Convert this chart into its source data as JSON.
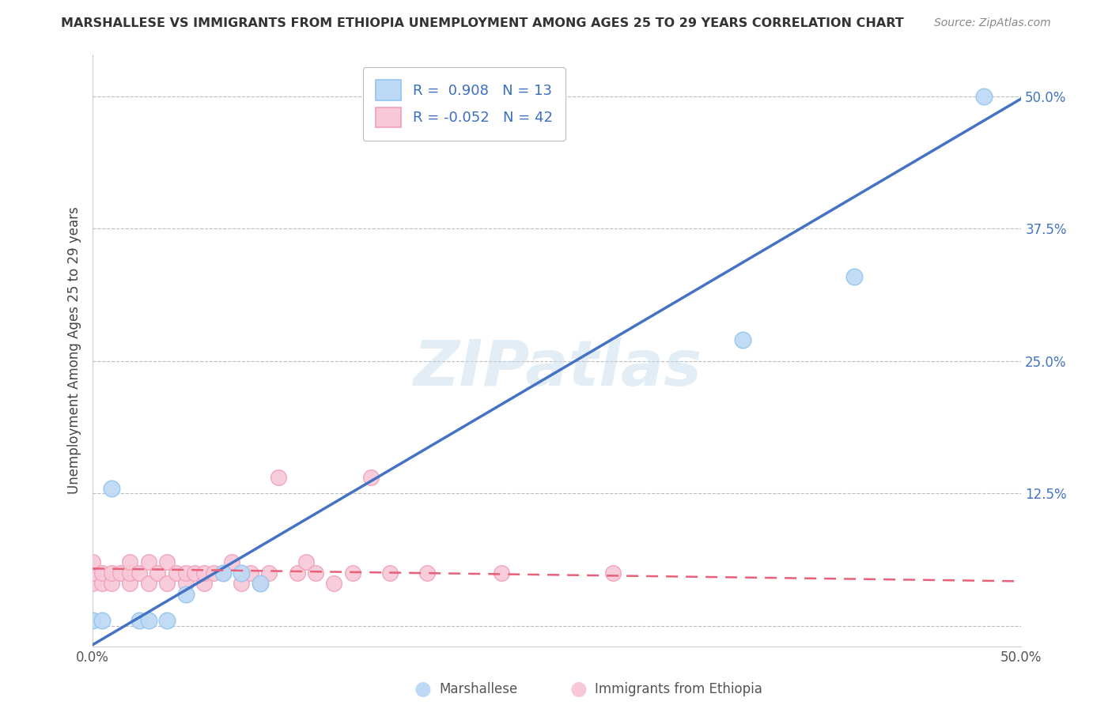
{
  "title": "MARSHALLESE VS IMMIGRANTS FROM ETHIOPIA UNEMPLOYMENT AMONG AGES 25 TO 29 YEARS CORRELATION CHART",
  "source": "Source: ZipAtlas.com",
  "ylabel": "Unemployment Among Ages 25 to 29 years",
  "xlim": [
    0,
    0.5
  ],
  "ylim": [
    -0.02,
    0.54
  ],
  "yticks": [
    0.0,
    0.125,
    0.25,
    0.375,
    0.5
  ],
  "yticklabels": [
    "",
    "12.5%",
    "25.0%",
    "37.5%",
    "50.0%"
  ],
  "xticks": [
    0.0,
    0.5
  ],
  "xticklabels": [
    "0.0%",
    "50.0%"
  ],
  "marshallese_color": "#90C4EE",
  "marshallese_fill": "#BDD9F5",
  "ethiopia_color": "#F0A0B8",
  "ethiopia_fill": "#F8C8D8",
  "blue_line_color": "#4472C4",
  "pink_line_color": "#E8607A",
  "R_marshallese": 0.908,
  "N_marshallese": 13,
  "R_ethiopia": -0.052,
  "N_ethiopia": 42,
  "legend_label_1": "Marshallese",
  "legend_label_2": "Immigrants from Ethiopia",
  "watermark": "ZIPatlas",
  "background_color": "#FFFFFF",
  "grid_color": "#BBBBBB",
  "blue_line_x": [
    0.0,
    0.5
  ],
  "blue_line_y": [
    -0.018,
    0.498
  ],
  "pink_line_x": [
    0.0,
    0.5
  ],
  "pink_line_y": [
    0.054,
    0.042
  ],
  "marshallese_x": [
    0.005,
    0.005,
    0.02,
    0.03,
    0.04,
    0.045,
    0.05,
    0.065,
    0.075,
    0.085,
    0.005,
    0.005,
    0.005
  ],
  "marshallese_y": [
    0.0,
    0.14,
    0.005,
    0.005,
    0.005,
    0.005,
    0.005,
    0.005,
    0.005,
    0.005,
    0.005,
    0.005,
    0.005
  ],
  "marshallese_x2": [
    0.0,
    0.01,
    0.025,
    0.03,
    0.04,
    0.05,
    0.07,
    0.08,
    0.09,
    0.35,
    0.41,
    0.48,
    0.005
  ],
  "marshallese_y2": [
    0.005,
    0.13,
    0.005,
    0.005,
    0.005,
    0.03,
    0.05,
    0.05,
    0.04,
    0.27,
    0.33,
    0.5,
    0.005
  ],
  "ethiopia_x": [
    0.0,
    0.0,
    0.0,
    0.0,
    0.005,
    0.005,
    0.01,
    0.01,
    0.015,
    0.02,
    0.02,
    0.02,
    0.025,
    0.03,
    0.03,
    0.035,
    0.04,
    0.04,
    0.045,
    0.05,
    0.05,
    0.055,
    0.06,
    0.06,
    0.065,
    0.07,
    0.075,
    0.08,
    0.085,
    0.09,
    0.095,
    0.1,
    0.11,
    0.115,
    0.12,
    0.13,
    0.14,
    0.15,
    0.16,
    0.18,
    0.22,
    0.28
  ],
  "ethiopia_y": [
    0.04,
    0.05,
    0.05,
    0.06,
    0.04,
    0.05,
    0.04,
    0.05,
    0.05,
    0.04,
    0.05,
    0.06,
    0.05,
    0.04,
    0.06,
    0.05,
    0.04,
    0.06,
    0.05,
    0.04,
    0.05,
    0.05,
    0.04,
    0.05,
    0.05,
    0.05,
    0.06,
    0.04,
    0.05,
    0.04,
    0.05,
    0.14,
    0.05,
    0.06,
    0.05,
    0.04,
    0.05,
    0.14,
    0.05,
    0.05,
    0.05,
    0.05
  ]
}
